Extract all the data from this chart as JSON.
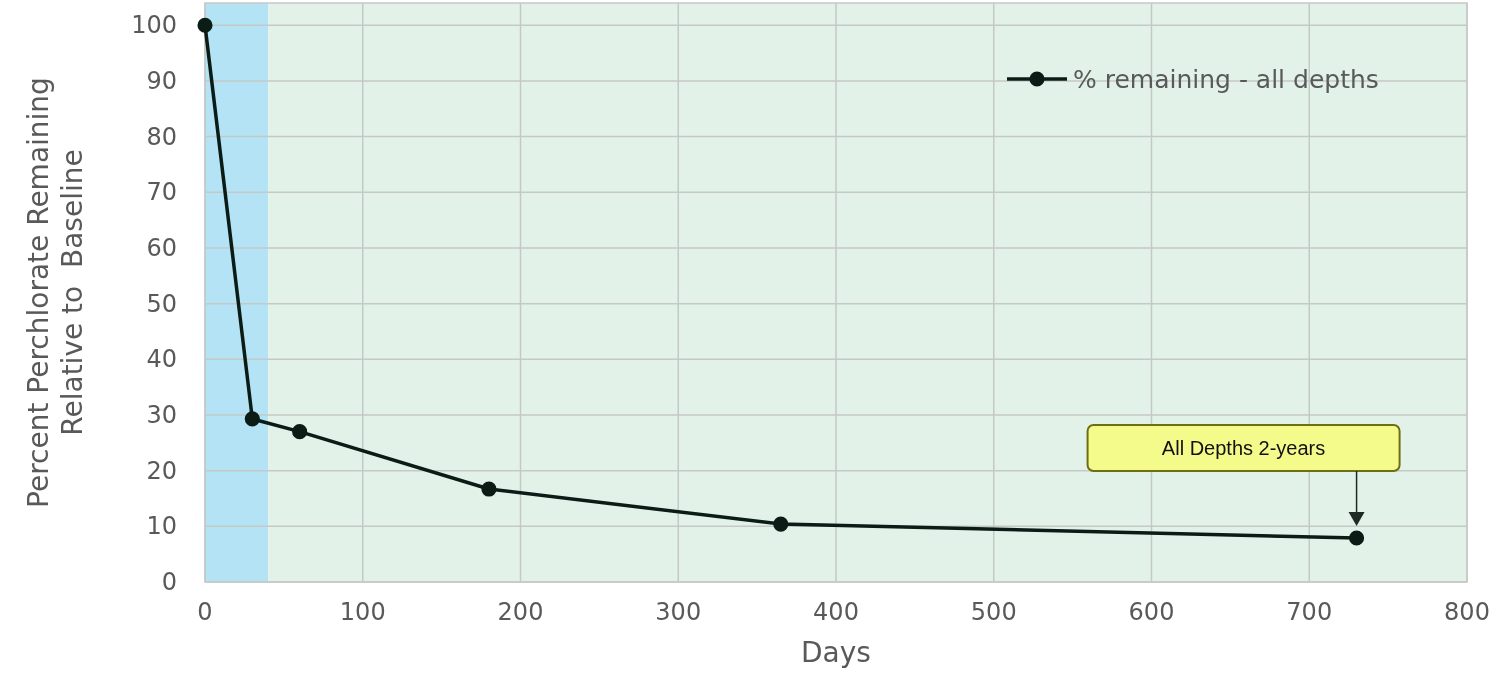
{
  "chart_data": {
    "type": "line",
    "xlabel": "Days",
    "ylabel": "Percent Perchlorate Remaining\nRelative to  Baseline",
    "x": [
      0,
      30,
      60,
      180,
      365,
      730
    ],
    "series": [
      {
        "name": "% remaining - all depths",
        "color": "#0b1c16",
        "values": [
          100,
          29.3,
          27,
          16.7,
          10.4,
          7.9
        ]
      }
    ],
    "xlim": [
      0,
      800
    ],
    "xticks": [
      0,
      100,
      200,
      300,
      400,
      500,
      600,
      700,
      800
    ],
    "ylim": [
      0,
      104
    ],
    "yticks": [
      0,
      10,
      20,
      30,
      40,
      50,
      60,
      70,
      80,
      90,
      100
    ],
    "bands": [
      {
        "axis": "x",
        "from": 0,
        "to": 40,
        "color": "#b3e3f4"
      },
      {
        "axis": "x",
        "from": 40,
        "to": 800,
        "color": "#e3f2e8"
      }
    ],
    "annotations": [
      "All Depths 2-years"
    ],
    "grid": true,
    "legend": "top right",
    "marker": "circle",
    "line_style": "solid"
  }
}
